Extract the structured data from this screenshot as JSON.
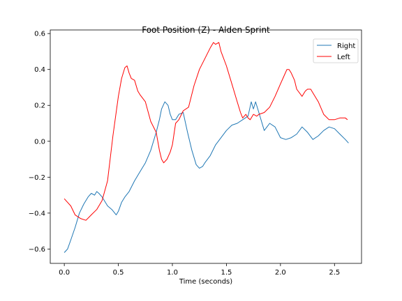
{
  "chart_data": {
    "type": "line",
    "title": "Foot Position (Z) - Alden Sprint",
    "xlabel": "Time (seconds)",
    "ylabel": "",
    "xlim": [
      -0.13,
      2.75
    ],
    "ylim": [
      -0.68,
      0.62
    ],
    "xticks": [
      0.0,
      0.5,
      1.0,
      1.5,
      2.0,
      2.5
    ],
    "xtick_labels": [
      "0.0",
      "0.5",
      "1.0",
      "1.5",
      "2.0",
      "2.5"
    ],
    "yticks": [
      -0.6,
      -0.4,
      -0.2,
      0.0,
      0.2,
      0.4,
      0.6
    ],
    "ytick_labels": [
      "−0.6",
      "−0.4",
      "−0.2",
      "0.0",
      "0.2",
      "0.4",
      "0.6"
    ],
    "grid": false,
    "legend_position": "top-right",
    "series": [
      {
        "name": "Right",
        "color": "#1f77b4",
        "x": [
          0.0,
          0.03,
          0.06,
          0.1,
          0.14,
          0.18,
          0.22,
          0.25,
          0.28,
          0.3,
          0.32,
          0.35,
          0.38,
          0.4,
          0.44,
          0.48,
          0.5,
          0.53,
          0.56,
          0.6,
          0.65,
          0.7,
          0.75,
          0.8,
          0.85,
          0.88,
          0.9,
          0.93,
          0.96,
          0.98,
          1.0,
          1.03,
          1.06,
          1.1,
          1.14,
          1.18,
          1.22,
          1.25,
          1.28,
          1.3,
          1.35,
          1.4,
          1.45,
          1.5,
          1.55,
          1.6,
          1.65,
          1.7,
          1.73,
          1.75,
          1.77,
          1.8,
          1.85,
          1.9,
          1.95,
          2.0,
          2.05,
          2.1,
          2.15,
          2.2,
          2.25,
          2.3,
          2.35,
          2.4,
          2.45,
          2.5,
          2.55,
          2.6,
          2.63
        ],
        "y": [
          -0.62,
          -0.6,
          -0.55,
          -0.48,
          -0.4,
          -0.35,
          -0.31,
          -0.29,
          -0.3,
          -0.28,
          -0.29,
          -0.31,
          -0.34,
          -0.36,
          -0.38,
          -0.41,
          -0.39,
          -0.34,
          -0.31,
          -0.28,
          -0.22,
          -0.17,
          -0.12,
          -0.05,
          0.05,
          0.12,
          0.18,
          0.22,
          0.2,
          0.15,
          0.12,
          0.12,
          0.15,
          0.16,
          0.05,
          -0.05,
          -0.13,
          -0.15,
          -0.14,
          -0.12,
          -0.08,
          -0.02,
          0.02,
          0.06,
          0.09,
          0.1,
          0.12,
          0.14,
          0.22,
          0.18,
          0.22,
          0.16,
          0.06,
          0.1,
          0.08,
          0.02,
          0.01,
          0.02,
          0.04,
          0.08,
          0.05,
          0.01,
          0.03,
          0.06,
          0.08,
          0.07,
          0.04,
          0.01,
          -0.01
        ]
      },
      {
        "name": "Left",
        "color": "#ff0000",
        "x": [
          0.0,
          0.03,
          0.06,
          0.1,
          0.15,
          0.2,
          0.25,
          0.3,
          0.35,
          0.4,
          0.45,
          0.5,
          0.53,
          0.56,
          0.58,
          0.6,
          0.62,
          0.65,
          0.68,
          0.7,
          0.75,
          0.8,
          0.85,
          0.88,
          0.9,
          0.92,
          0.95,
          0.98,
          1.0,
          1.03,
          1.06,
          1.1,
          1.15,
          1.2,
          1.25,
          1.3,
          1.35,
          1.38,
          1.4,
          1.43,
          1.45,
          1.5,
          1.55,
          1.6,
          1.63,
          1.65,
          1.68,
          1.7,
          1.72,
          1.75,
          1.78,
          1.8,
          1.85,
          1.9,
          1.95,
          2.0,
          2.03,
          2.06,
          2.08,
          2.1,
          2.13,
          2.15,
          2.2,
          2.23,
          2.25,
          2.28,
          2.3,
          2.35,
          2.4,
          2.45,
          2.5,
          2.55,
          2.6,
          2.62
        ],
        "y": [
          -0.32,
          -0.34,
          -0.36,
          -0.41,
          -0.43,
          -0.44,
          -0.41,
          -0.38,
          -0.33,
          -0.22,
          0.03,
          0.25,
          0.35,
          0.41,
          0.42,
          0.38,
          0.35,
          0.34,
          0.28,
          0.26,
          0.22,
          0.11,
          0.05,
          -0.05,
          -0.1,
          -0.12,
          -0.1,
          -0.06,
          -0.02,
          0.1,
          0.12,
          0.17,
          0.19,
          0.31,
          0.4,
          0.46,
          0.52,
          0.55,
          0.54,
          0.55,
          0.5,
          0.42,
          0.32,
          0.22,
          0.16,
          0.13,
          0.15,
          0.13,
          0.12,
          0.15,
          0.14,
          0.15,
          0.16,
          0.19,
          0.25,
          0.32,
          0.36,
          0.4,
          0.4,
          0.38,
          0.34,
          0.29,
          0.25,
          0.28,
          0.29,
          0.29,
          0.27,
          0.22,
          0.15,
          0.12,
          0.12,
          0.13,
          0.13,
          0.12
        ]
      }
    ]
  }
}
